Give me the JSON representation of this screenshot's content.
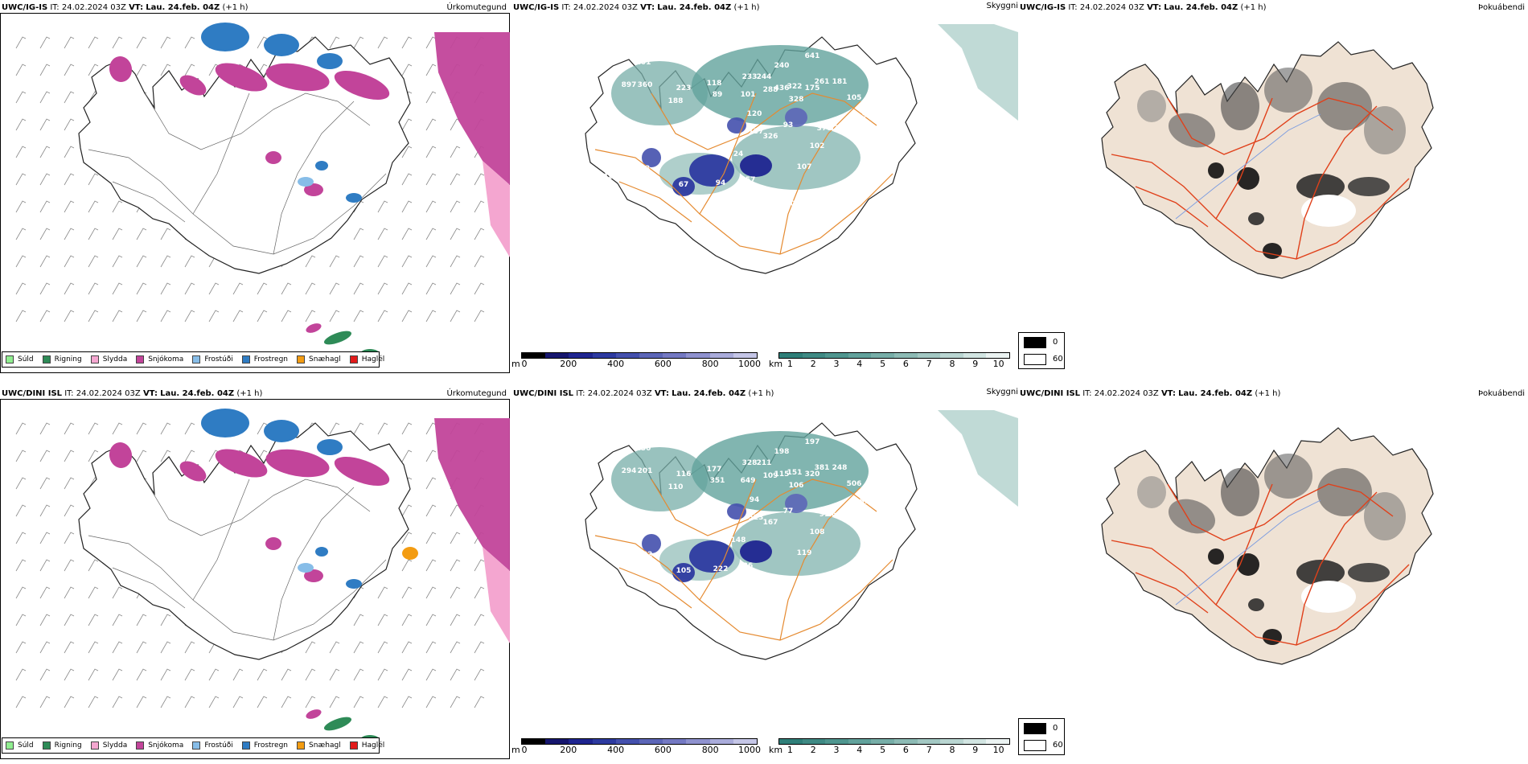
{
  "rows": [
    {
      "model": "UWC/IG-IS",
      "it_label": "IT:",
      "it_value": "24.02.2024 03Z",
      "vt_label": "VT:",
      "vt_value": "Lau. 24.feb. 04Z",
      "lead": "(+1 h)"
    },
    {
      "model": "UWC/DINI ISL",
      "it_label": "IT:",
      "it_value": "24.02.2024 03Z",
      "vt_label": "VT:",
      "vt_value": "Lau. 24.feb. 04Z",
      "lead": "(+1 h)"
    }
  ],
  "panels": {
    "precip_type": "Úrkomutegund",
    "visibility": "Skyggni",
    "fog": "Þokuábendi"
  },
  "precip_legend": [
    {
      "label": "Súld",
      "color": "#90ee90"
    },
    {
      "label": "Rigning",
      "color": "#2e8b57"
    },
    {
      "label": "Slydda",
      "color": "#f4a6d0"
    },
    {
      "label": "Snjókoma",
      "color": "#c2449a"
    },
    {
      "label": "Frostúði",
      "color": "#87bde8"
    },
    {
      "label": "Frostregn",
      "color": "#2f7cc3"
    },
    {
      "label": "Snæhagl",
      "color": "#f39c12"
    },
    {
      "label": "Haglél",
      "color": "#e21b1b"
    }
  ],
  "cloud_base_scale": {
    "unit": "m",
    "ticks": [
      "0",
      "200",
      "400",
      "600",
      "800",
      "1000"
    ],
    "colors": [
      "#000000",
      "#16166e",
      "#1f2590",
      "#2d3aa0",
      "#4450ad",
      "#5c66b8",
      "#7479c3",
      "#8f92cf",
      "#aaacdb",
      "#c5c6e7"
    ]
  },
  "visibility_scale": {
    "unit": "km",
    "ticks": [
      "1",
      "2",
      "3",
      "4",
      "5",
      "6",
      "7",
      "8",
      "9",
      "10"
    ],
    "colors": [
      "#2f7f79",
      "#3f8a84",
      "#4f968f",
      "#62a29c",
      "#77aea8",
      "#8dbbb5",
      "#a3c8c3",
      "#bad6d2",
      "#d2e5e2",
      "#ebf3f2"
    ]
  },
  "fog_legend": {
    "top": "0",
    "bottom": "60",
    "top_color": "#000000",
    "bottom_color": "#ffffff"
  },
  "cloud_labels_top": [
    "175",
    "201",
    "897",
    "360",
    "223",
    "188",
    "118",
    "89",
    "233",
    "244",
    "240",
    "641",
    "288",
    "436",
    "322",
    "261",
    "181",
    "328",
    "175",
    "105",
    "101",
    "120",
    "137",
    "90",
    "93",
    "377",
    "378",
    "225",
    "87",
    "24",
    "326",
    "102",
    "107",
    "188",
    "73",
    "67",
    "94",
    "157",
    "129",
    "69",
    "114",
    "101",
    "124",
    "185"
  ],
  "cloud_labels_bottom": [
    "159",
    "150",
    "294",
    "201",
    "116",
    "110",
    "177",
    "351",
    "328",
    "211",
    "198",
    "197",
    "109",
    "115",
    "151",
    "381",
    "248",
    "106",
    "320",
    "506",
    "649",
    "94",
    "523",
    "511",
    "77",
    "91",
    "68",
    "86",
    "95",
    "148",
    "167",
    "108",
    "119",
    "69",
    "102",
    "105",
    "222",
    "26",
    "120"
  ]
}
